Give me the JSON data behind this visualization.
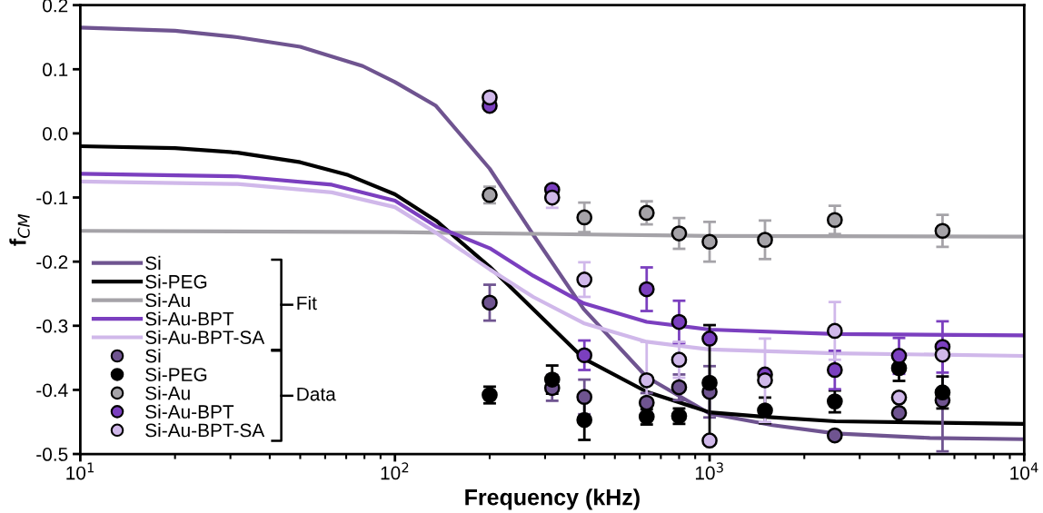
{
  "chart_data": {
    "type": "line",
    "xlabel": "Frequency (kHz)",
    "ylabel": "f$_{CM}$",
    "log": "x",
    "xlim": [
      10,
      10000
    ],
    "xticks": [
      {
        "value": 10,
        "label": "10$^{1}$"
      },
      {
        "value": 100,
        "label": "10$^{2}$"
      },
      {
        "value": 1000,
        "label": "10$^{3}$"
      },
      {
        "value": 10000,
        "label": "10$^{4}$"
      }
    ],
    "ylim": [
      -0.5,
      0.2
    ],
    "yticks": [
      {
        "value": -0.5,
        "label": "-0.5"
      },
      {
        "value": -0.4,
        "label": "-0.4"
      },
      {
        "value": -0.3,
        "label": "-0.3"
      },
      {
        "value": -0.2,
        "label": "-0.2"
      },
      {
        "value": -0.1,
        "label": "-0.1"
      },
      {
        "value": 0,
        "label": "0.0"
      },
      0.1,
      0.2
    ],
    "grid": false,
    "legend": "bottom left",
    "annotations": [
      "Fit",
      "Data"
    ],
    "series": [
      {
        "name": "Si",
        "marker": "none",
        "color": "#6f5490",
        "x": [
          10,
          20,
          31.6,
          50,
          63,
          79,
          100,
          135,
          200,
          275,
          398,
          631,
          1000,
          1585,
          2512,
          5012,
          10000
        ],
        "values": [
          0.165,
          0.16,
          0.15,
          0.135,
          0.12,
          0.105,
          0.08,
          0.043,
          -0.055,
          -0.158,
          -0.274,
          -0.38,
          -0.437,
          -0.455,
          -0.468,
          -0.475,
          -0.477
        ]
      },
      {
        "name": "Si-PEG",
        "marker": "none",
        "color": "#000000",
        "x": [
          10,
          20,
          31.6,
          50,
          71,
          100,
          135,
          200,
          275,
          398,
          631,
          1000,
          1500,
          2512,
          10000
        ],
        "values": [
          -0.02,
          -0.023,
          -0.03,
          -0.045,
          -0.065,
          -0.095,
          -0.136,
          -0.208,
          -0.274,
          -0.351,
          -0.403,
          -0.435,
          -0.442,
          -0.449,
          -0.453
        ]
      },
      {
        "name": "Si-Au",
        "marker": "none",
        "color": "#a5a3a8",
        "x": [
          10,
          100,
          316,
          1000,
          10000
        ],
        "values": [
          -0.152,
          -0.154,
          -0.157,
          -0.16,
          -0.161
        ]
      },
      {
        "name": "Si-Au-BPT",
        "marker": "none",
        "color": "#7b3fbf",
        "x": [
          10,
          31.6,
          63,
          100,
          135,
          200,
          275,
          398,
          631,
          1000,
          2512,
          10000
        ],
        "values": [
          -0.063,
          -0.067,
          -0.08,
          -0.105,
          -0.145,
          -0.179,
          -0.222,
          -0.265,
          -0.294,
          -0.306,
          -0.313,
          -0.315
        ]
      },
      {
        "name": "Si-Au-BPT-SA",
        "marker": "none",
        "color": "#d0b8ea",
        "x": [
          10,
          31.6,
          63,
          100,
          135,
          200,
          275,
          398,
          631,
          1000,
          2512,
          10000
        ],
        "values": [
          -0.075,
          -0.079,
          -0.092,
          -0.115,
          -0.155,
          -0.212,
          -0.255,
          -0.296,
          -0.325,
          -0.337,
          -0.343,
          -0.347
        ]
      },
      {
        "name": "Si",
        "type": "scatter",
        "marker": "circle",
        "color": "#6f5490",
        "x": [
          200,
          316,
          400,
          631,
          800,
          1000,
          1500,
          2500,
          4000,
          5500
        ],
        "values": [
          -0.264,
          -0.397,
          -0.411,
          -0.42,
          -0.396,
          -0.403,
          null,
          -0.471,
          -0.436,
          -0.416
        ],
        "errors": [
          0.028,
          0.02,
          0.027,
          0.015,
          0.02,
          0.04,
          null,
          null,
          null,
          0.08
        ]
      },
      {
        "name": "Si-PEG",
        "type": "scatter",
        "marker": "circle",
        "color": "#000000",
        "x": [
          200,
          316,
          400,
          631,
          800,
          1000,
          1500,
          2500,
          4000,
          5500
        ],
        "values": [
          -0.408,
          -0.384,
          -0.447,
          -0.442,
          -0.441,
          -0.389,
          -0.432,
          -0.418,
          -0.366,
          -0.404
        ],
        "errors": [
          0.013,
          0.022,
          0.031,
          0.012,
          0.012,
          0.09,
          0.02,
          0.017,
          0.02,
          0.025
        ]
      },
      {
        "name": "Si-Au",
        "type": "scatter",
        "marker": "circle",
        "color": "#a5a3a8",
        "x": [
          200,
          316,
          400,
          631,
          800,
          1000,
          1500,
          2500,
          4000,
          5500
        ],
        "values": [
          -0.096,
          null,
          -0.131,
          -0.124,
          -0.156,
          -0.169,
          -0.166,
          -0.135,
          null,
          -0.152
        ],
        "errors": [
          0.013,
          null,
          0.023,
          0.018,
          0.024,
          0.031,
          0.03,
          0.022,
          null,
          0.025
        ]
      },
      {
        "name": "Si-Au-BPT",
        "type": "scatter",
        "marker": "circle",
        "color": "#7b3fbf",
        "x": [
          200,
          316,
          400,
          631,
          800,
          1000,
          1500,
          2500,
          4000,
          5500
        ],
        "values": [
          0.043,
          -0.088,
          -0.346,
          -0.243,
          -0.294,
          -0.32,
          -0.376,
          -0.369,
          -0.347,
          -0.333
        ],
        "errors": [
          null,
          null,
          0.023,
          0.034,
          0.033,
          null,
          null,
          0.03,
          0.028,
          0.04
        ]
      },
      {
        "name": "Si-Au-BPT-SA",
        "type": "scatter",
        "marker": "circle",
        "color": "#d0b8ea",
        "x": [
          200,
          316,
          400,
          631,
          800,
          1000,
          1500,
          2500,
          4000,
          5500
        ],
        "values": [
          0.056,
          -0.1,
          -0.228,
          -0.385,
          -0.353,
          -0.479,
          -0.385,
          -0.308,
          -0.412,
          -0.345
        ],
        "errors": [
          null,
          0.016,
          0.027,
          0.06,
          0.028,
          null,
          0.065,
          0.045,
          null,
          null
        ]
      }
    ]
  }
}
